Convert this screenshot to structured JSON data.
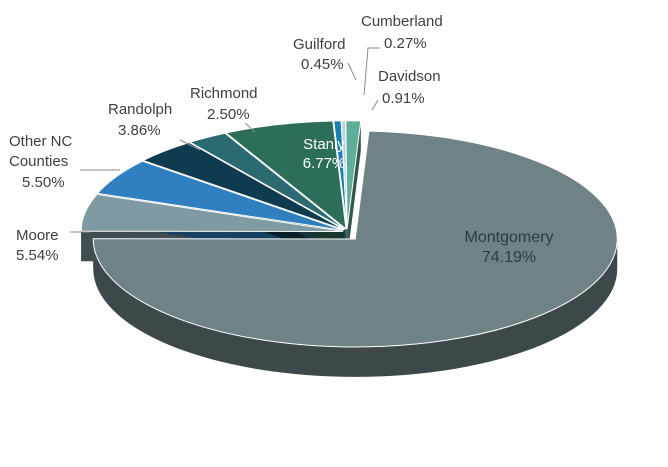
{
  "chart_data": {
    "type": "pie",
    "title": "",
    "three_d": true,
    "exploded": true,
    "legend": "none",
    "slices": [
      {
        "name": "Montgomery",
        "value": 74.19,
        "label": "74.19%",
        "color": "#6f8286"
      },
      {
        "name": "Moore",
        "value": 5.54,
        "label": "5.54%",
        "color": "#7f9aa2"
      },
      {
        "name": "Other NC Counties",
        "value": 5.5,
        "label": "5.50%",
        "color": "#2f7fc1"
      },
      {
        "name": "Randolph",
        "value": 3.86,
        "label": "3.86%",
        "color": "#0f3b50"
      },
      {
        "name": "Richmond",
        "value": 2.5,
        "label": "2.50%",
        "color": "#2a6a70"
      },
      {
        "name": "Stanly",
        "value": 6.77,
        "label": "6.77%",
        "color": "#2d6e5a"
      },
      {
        "name": "Guilford",
        "value": 0.45,
        "label": "0.45%",
        "color": "#1a7fb0"
      },
      {
        "name": "Cumberland",
        "value": 0.27,
        "label": "0.27%",
        "color": "#bcd3d5"
      },
      {
        "name": "Davidson",
        "value": 0.91,
        "label": "0.91%",
        "color": "#5fae9a"
      }
    ],
    "label_lines": {
      "other_nc_counties": {
        "line1": "Other NC",
        "line2": "Counties"
      }
    }
  }
}
